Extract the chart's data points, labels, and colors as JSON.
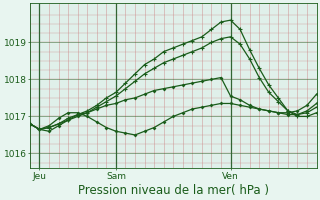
{
  "xlabel": "Pression niveau de la mer( hPa )",
  "background_color": "#e8f5f0",
  "plot_bg_color": "#e0f0ea",
  "line_color": "#1a5c1a",
  "vline_color": "#cc8888",
  "hline_color": "#cc8888",
  "day_line_color": "#336633",
  "ylim": [
    1015.6,
    1020.05
  ],
  "xlim": [
    0,
    30
  ],
  "day_labels": [
    "Jeu",
    "Sam",
    "Ven"
  ],
  "day_positions": [
    1,
    9,
    21
  ],
  "yticks": [
    1016,
    1017,
    1018,
    1019
  ],
  "series1_x": [
    0,
    1,
    2,
    3,
    4,
    5,
    6,
    7,
    8,
    9,
    10,
    11,
    12,
    13,
    14,
    15,
    16,
    17,
    18,
    19,
    20,
    21,
    22,
    23,
    24,
    25,
    26,
    27,
    28,
    29,
    30
  ],
  "series1": [
    1016.8,
    1016.65,
    1016.6,
    1016.75,
    1016.9,
    1017.0,
    1017.1,
    1017.2,
    1017.3,
    1017.35,
    1017.45,
    1017.5,
    1017.6,
    1017.7,
    1017.75,
    1017.8,
    1017.85,
    1017.9,
    1017.95,
    1018.0,
    1018.05,
    1017.55,
    1017.45,
    1017.3,
    1017.2,
    1017.15,
    1017.1,
    1017.1,
    1017.15,
    1017.3,
    1017.6
  ],
  "series2": [
    1016.8,
    1016.65,
    1016.7,
    1016.8,
    1016.95,
    1017.05,
    1017.15,
    1017.3,
    1017.5,
    1017.65,
    1017.9,
    1018.15,
    1018.4,
    1018.55,
    1018.75,
    1018.85,
    1018.95,
    1019.05,
    1019.15,
    1019.35,
    1019.55,
    1019.6,
    1019.35,
    1018.8,
    1018.3,
    1017.85,
    1017.5,
    1017.15,
    1017.0,
    1017.0,
    1017.1
  ],
  "series3": [
    1016.8,
    1016.65,
    1016.7,
    1016.8,
    1016.9,
    1017.05,
    1017.1,
    1017.25,
    1017.4,
    1017.55,
    1017.75,
    1017.95,
    1018.15,
    1018.3,
    1018.45,
    1018.55,
    1018.65,
    1018.75,
    1018.85,
    1019.0,
    1019.1,
    1019.15,
    1018.95,
    1018.55,
    1018.05,
    1017.65,
    1017.4,
    1017.15,
    1017.05,
    1017.1,
    1017.25
  ],
  "series4": [
    1016.8,
    1016.65,
    1016.75,
    1016.95,
    1017.1,
    1017.1,
    1017.0,
    1016.85,
    1016.7,
    1016.6,
    1016.55,
    1016.5,
    1016.6,
    1016.7,
    1016.85,
    1017.0,
    1017.1,
    1017.2,
    1017.25,
    1017.3,
    1017.35,
    1017.35,
    1017.3,
    1017.25,
    1017.2,
    1017.15,
    1017.1,
    1017.05,
    1017.05,
    1017.15,
    1017.35
  ],
  "tick_label_fontsize": 6.5,
  "xlabel_fontsize": 8.5
}
